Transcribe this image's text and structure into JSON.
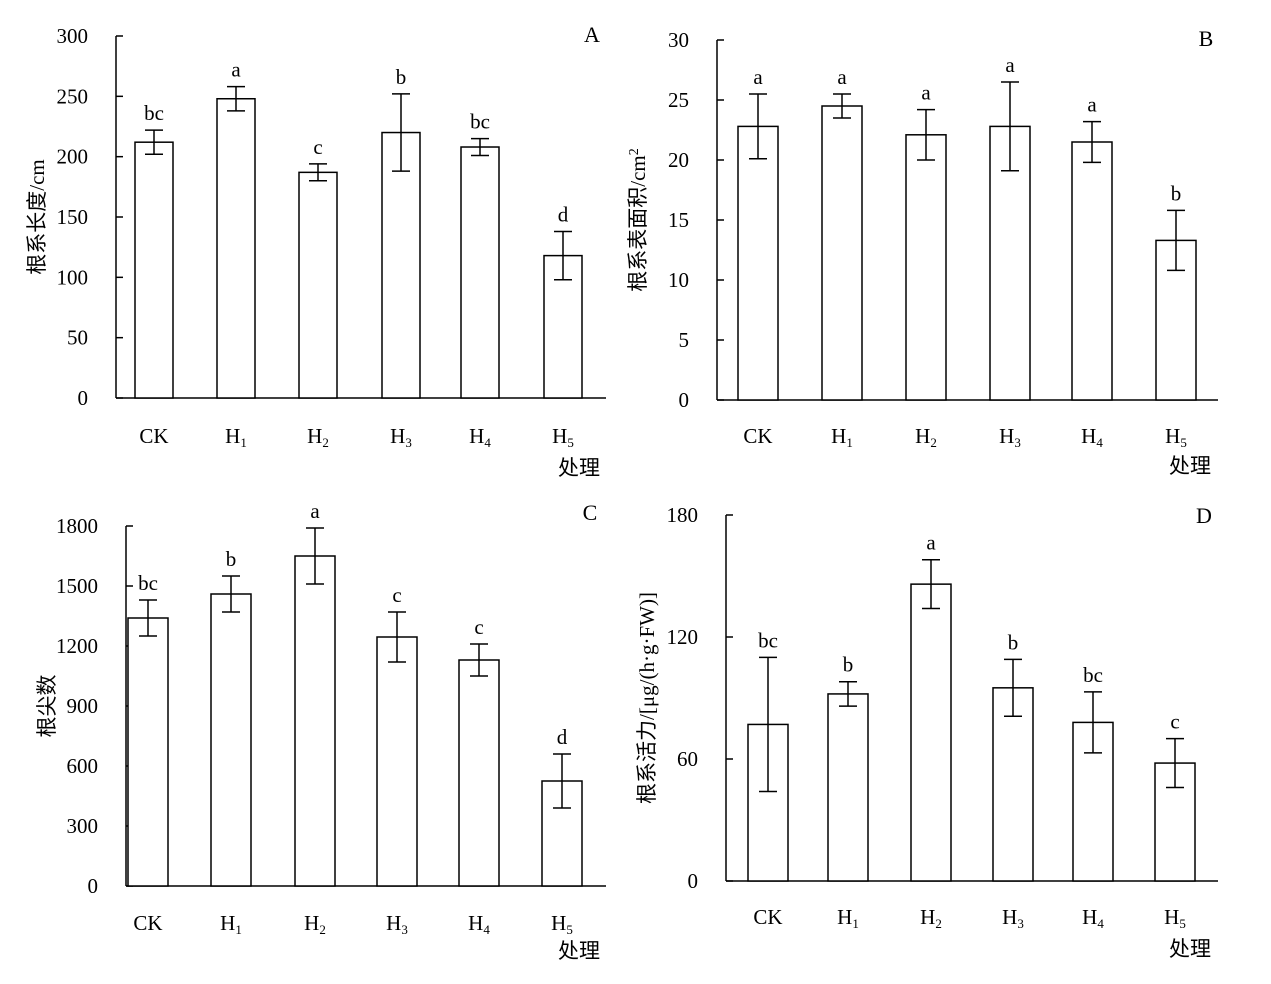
{
  "chart_data": [
    {
      "type": "bar",
      "panel": "A",
      "categories": [
        "CK",
        "H1",
        "H2",
        "H3",
        "H4",
        "H5"
      ],
      "values": [
        212,
        248,
        187,
        220,
        208,
        118
      ],
      "errors": [
        10,
        10,
        7,
        32,
        7,
        20
      ],
      "significance": [
        "bc",
        "a",
        "c",
        "b",
        "bc",
        "d"
      ],
      "ylabel": "根系长度/cm",
      "xlabel": "处理",
      "ylim": [
        0,
        300
      ],
      "yticks": [
        0,
        50,
        100,
        150,
        200,
        250,
        300
      ]
    },
    {
      "type": "bar",
      "panel": "B",
      "categories": [
        "CK",
        "H1",
        "H2",
        "H3",
        "H4",
        "H5"
      ],
      "values": [
        22.8,
        24.5,
        22.1,
        22.8,
        21.5,
        13.3
      ],
      "errors": [
        2.7,
        1.0,
        2.1,
        3.7,
        1.7,
        2.5
      ],
      "significance": [
        "a",
        "a",
        "a",
        "a",
        "a",
        "b"
      ],
      "ylabel": "根系表面积/cm",
      "ylabel_sup": "2",
      "xlabel": "处理",
      "ylim": [
        0,
        30
      ],
      "yticks": [
        0,
        5,
        10,
        15,
        20,
        25,
        30
      ]
    },
    {
      "type": "bar",
      "panel": "C",
      "categories": [
        "CK",
        "H1",
        "H2",
        "H3",
        "H4",
        "H5"
      ],
      "values": [
        1340,
        1460,
        1650,
        1245,
        1130,
        525
      ],
      "errors": [
        90,
        90,
        140,
        125,
        80,
        135
      ],
      "significance": [
        "bc",
        "b",
        "a",
        "c",
        "c",
        "d"
      ],
      "ylabel": "根尖数",
      "xlabel": "处理",
      "ylim": [
        0,
        1800
      ],
      "yticks": [
        0,
        300,
        600,
        900,
        1200,
        1500,
        1800
      ]
    },
    {
      "type": "bar",
      "panel": "D",
      "categories": [
        "CK",
        "H1",
        "H2",
        "H3",
        "H4",
        "H5"
      ],
      "values": [
        77,
        92,
        146,
        95,
        78,
        58
      ],
      "errors": [
        33,
        6,
        12,
        14,
        15,
        12
      ],
      "significance": [
        "bc",
        "b",
        "a",
        "b",
        "bc",
        "c"
      ],
      "ylabel": "根系活力/[μg/(h·g·FW)]",
      "xlabel": "处理",
      "ylim": [
        0,
        180
      ],
      "yticks": [
        0,
        60,
        120,
        180
      ]
    }
  ]
}
